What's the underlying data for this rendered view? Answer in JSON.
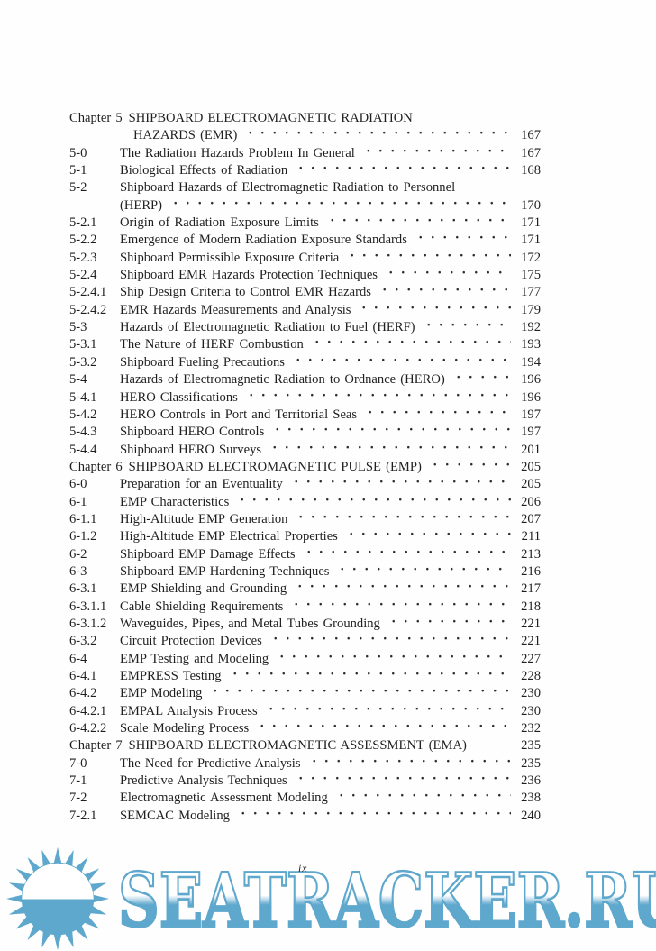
{
  "document": {
    "kind": "table-of-contents-page",
    "folio": "ix",
    "ink_color": "#1f1f1f",
    "toc": {
      "rows": [
        {
          "num": "Chapter 5",
          "title": "SHIPBOARD ELECTROMAGNETIC RADIATION",
          "page": "",
          "type": "chapter",
          "dots": false
        },
        {
          "num": "",
          "title": "HAZARDS (EMR)",
          "page": "167",
          "type": "cont",
          "dots": true,
          "indent": 15
        },
        {
          "num": "5-0",
          "title": "The Radiation Hazards Problem In General",
          "page": "167",
          "type": "entry",
          "dots": true
        },
        {
          "num": "5-1",
          "title": "Biological Effects of Radiation",
          "page": "168",
          "type": "entry",
          "dots": true
        },
        {
          "num": "5-2",
          "title": "Shipboard Hazards of Electromagnetic Radiation to Personnel",
          "page": "",
          "type": "entry",
          "dots": false
        },
        {
          "num": "",
          "title": "(HERP)",
          "page": "170",
          "type": "cont",
          "dots": true,
          "indent": 0
        },
        {
          "num": "5-2.1",
          "title": "Origin of Radiation Exposure Limits",
          "page": "171",
          "type": "entry",
          "dots": true
        },
        {
          "num": "5-2.2",
          "title": "Emergence of Modern Radiation Exposure Standards",
          "page": "171",
          "type": "entry",
          "dots": true
        },
        {
          "num": "5-2.3",
          "title": "Shipboard Permissible Exposure Criteria",
          "page": "172",
          "type": "entry",
          "dots": true
        },
        {
          "num": "5-2.4",
          "title": "Shipboard EMR Hazards Protection Techniques",
          "page": "175",
          "type": "entry",
          "dots": true
        },
        {
          "num": "5-2.4.1",
          "title": "Ship Design Criteria to Control EMR Hazards",
          "page": "177",
          "type": "entry",
          "dots": true
        },
        {
          "num": "5-2.4.2",
          "title": "EMR Hazards Measurements and Analysis",
          "page": "179",
          "type": "entry",
          "dots": true
        },
        {
          "num": "5-3",
          "title": "Hazards of Electromagnetic Radiation to Fuel (HERF)",
          "page": "192",
          "type": "entry",
          "dots": true
        },
        {
          "num": "5-3.1",
          "title": "The Nature of HERF Combustion",
          "page": "193",
          "type": "entry",
          "dots": true
        },
        {
          "num": "5-3.2",
          "title": "Shipboard Fueling Precautions",
          "page": "194",
          "type": "entry",
          "dots": true
        },
        {
          "num": "5-4",
          "title": "Hazards of Electromagnetic Radiation to Ordnance (HERO)",
          "page": "196",
          "type": "entry",
          "dots": true
        },
        {
          "num": "5-4.1",
          "title": "HERO Classifications",
          "page": "196",
          "type": "entry",
          "dots": true
        },
        {
          "num": "5-4.2",
          "title": "HERO Controls in Port and Territorial Seas",
          "page": "197",
          "type": "entry",
          "dots": true
        },
        {
          "num": "5-4.3",
          "title": "Shipboard HERO Controls",
          "page": "197",
          "type": "entry",
          "dots": true
        },
        {
          "num": "5-4.4",
          "title": "Shipboard HERO Surveys",
          "page": "201",
          "type": "entry",
          "dots": true
        },
        {
          "num": "Chapter 6",
          "title": "SHIPBOARD ELECTROMAGNETIC PULSE (EMP)",
          "page": "205",
          "type": "chapter",
          "dots": true
        },
        {
          "num": "6-0",
          "title": "Preparation for an Eventuality",
          "page": "205",
          "type": "entry",
          "dots": true
        },
        {
          "num": "6-1",
          "title": "EMP Characteristics",
          "page": "206",
          "type": "entry",
          "dots": true
        },
        {
          "num": "6-1.1",
          "title": "High-Altitude EMP Generation",
          "page": "207",
          "type": "entry",
          "dots": true
        },
        {
          "num": "6-1.2",
          "title": "High-Altitude EMP Electrical Properties",
          "page": "211",
          "type": "entry",
          "dots": true
        },
        {
          "num": "6-2",
          "title": "Shipboard EMP Damage Effects",
          "page": "213",
          "type": "entry",
          "dots": true
        },
        {
          "num": "6-3",
          "title": "Shipboard EMP Hardening Techniques",
          "page": "216",
          "type": "entry",
          "dots": true
        },
        {
          "num": "6-3.1",
          "title": "EMP Shielding and Grounding",
          "page": "217",
          "type": "entry",
          "dots": true
        },
        {
          "num": "6-3.1.1",
          "title": "Cable Shielding Requirements",
          "page": "218",
          "type": "entry",
          "dots": true
        },
        {
          "num": "6-3.1.2",
          "title": "Waveguides, Pipes, and Metal Tubes Grounding",
          "page": "221",
          "type": "entry",
          "dots": true
        },
        {
          "num": "6-3.2",
          "title": "Circuit Protection Devices",
          "page": "221",
          "type": "entry",
          "dots": true
        },
        {
          "num": "6-4",
          "title": "EMP Testing and Modeling",
          "page": "227",
          "type": "entry",
          "dots": true
        },
        {
          "num": "6-4.1",
          "title": "EMPRESS Testing",
          "page": "228",
          "type": "entry",
          "dots": true
        },
        {
          "num": "6-4.2",
          "title": "EMP Modeling",
          "page": "230",
          "type": "entry",
          "dots": true
        },
        {
          "num": "6-4.2.1",
          "title": "EMPAL Analysis Process",
          "page": "230",
          "type": "entry",
          "dots": true
        },
        {
          "num": "6-4.2.2",
          "title": "Scale Modeling Process",
          "page": "232",
          "type": "entry",
          "dots": true
        },
        {
          "num": "Chapter 7",
          "title": "SHIPBOARD ELECTROMAGNETIC ASSESSMENT (EMA)",
          "page": "235",
          "type": "chapter",
          "dots": false
        },
        {
          "num": "7-0",
          "title": "The Need for Predictive Analysis",
          "page": "235",
          "type": "entry",
          "dots": true
        },
        {
          "num": "7-1",
          "title": "Predictive Analysis Techniques",
          "page": "236",
          "type": "entry",
          "dots": true
        },
        {
          "num": "7-2",
          "title": "Electromagnetic Assessment Modeling",
          "page": "238",
          "type": "entry",
          "dots": true
        },
        {
          "num": "7-2.1",
          "title": "SEMCAC Modeling",
          "page": "240",
          "type": "entry",
          "dots": true
        }
      ]
    }
  },
  "watermark": {
    "text": "SEATRACKER.RU",
    "color": "#5ea7cd",
    "icon": "sun-icon"
  }
}
